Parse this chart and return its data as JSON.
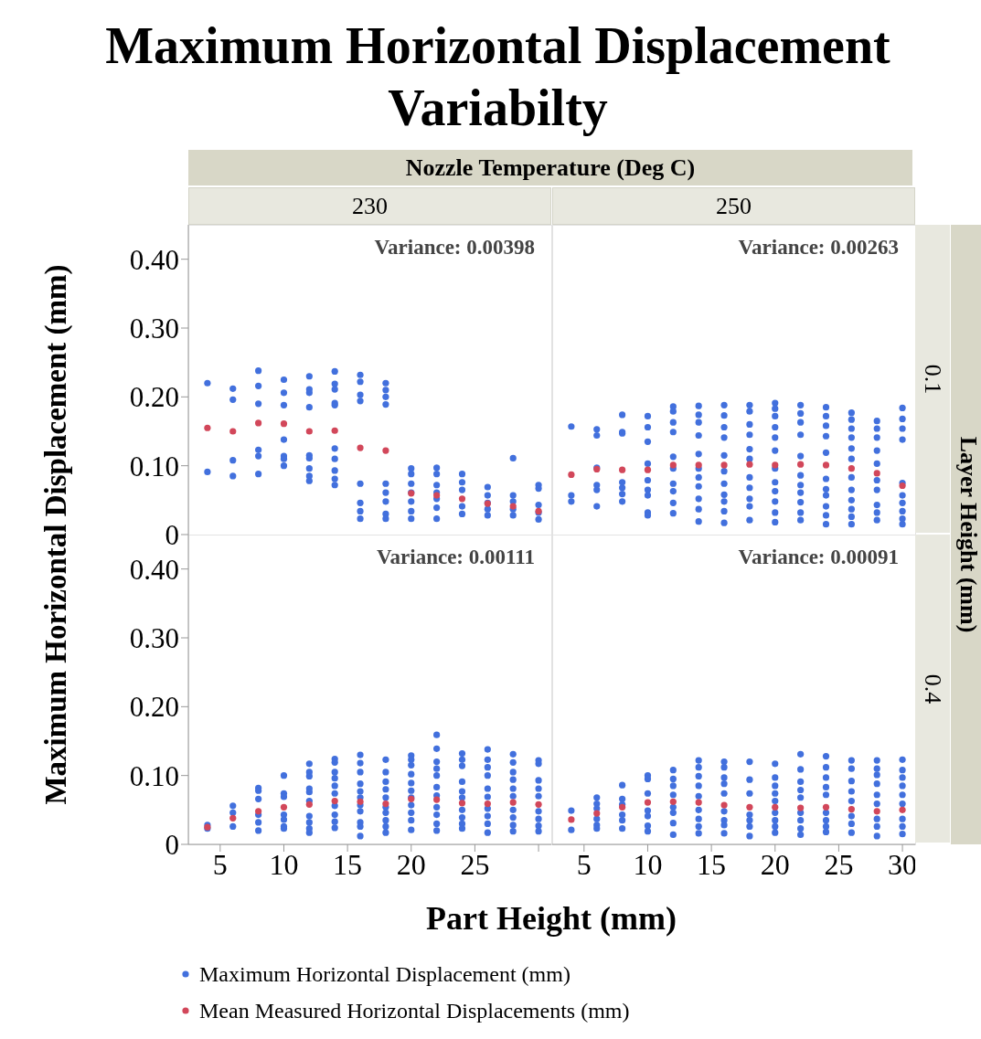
{
  "chart_data": [
    {
      "type": "scatter",
      "title": "Maximum Horizontal Displacement Variabilty",
      "ylabel": "Maximum Horizontal Displacement (mm)",
      "subtitle": "230",
      "annotations": [
        "Variance: 0.00398",
        "Nozzle Temperature (Deg C)"
      ],
      "marker": "circle",
      "tick_labels": "y",
      "xlim": [
        2.5,
        31
      ],
      "ylim": [
        0,
        0.45
      ],
      "yticks": [
        0,
        {
          "value": 0.1,
          "label": "0.10"
        },
        {
          "value": 0.2,
          "label": "0.20"
        },
        {
          "value": 0.3,
          "label": "0.30"
        },
        {
          "value": 0.4,
          "label": "0.40"
        }
      ],
      "series": [
        {
          "color": "#4270dd",
          "x": [
            4,
            4,
            6,
            6,
            6,
            6,
            8,
            8,
            8,
            8,
            8,
            8,
            10,
            10,
            10,
            10,
            10,
            10,
            10,
            12,
            12,
            12,
            12,
            12,
            12,
            12,
            12,
            12,
            14,
            14,
            14,
            14,
            14,
            14,
            14,
            14,
            14,
            14,
            16,
            16,
            16,
            16,
            16,
            16,
            16,
            16,
            18,
            18,
            18,
            18,
            18,
            18,
            18,
            18,
            18,
            20,
            20,
            20,
            20,
            20,
            20,
            20,
            22,
            22,
            22,
            22,
            22,
            22,
            22,
            24,
            24,
            24,
            24,
            24,
            26,
            26,
            26,
            26,
            26,
            28,
            28,
            28,
            28,
            28,
            30,
            30,
            30,
            30,
            30
          ],
          "values": [
            0.22,
            0.091,
            0.212,
            0.196,
            0.108,
            0.085,
            0.238,
            0.216,
            0.19,
            0.123,
            0.114,
            0.088,
            0.225,
            0.206,
            0.188,
            0.138,
            0.114,
            0.11,
            0.1,
            0.23,
            0.211,
            0.206,
            0.185,
            0.115,
            0.111,
            0.096,
            0.085,
            0.078,
            0.237,
            0.219,
            0.211,
            0.191,
            0.188,
            0.125,
            0.11,
            0.093,
            0.081,
            0.072,
            0.232,
            0.222,
            0.203,
            0.194,
            0.074,
            0.046,
            0.034,
            0.023,
            0.22,
            0.21,
            0.2,
            0.189,
            0.074,
            0.061,
            0.048,
            0.03,
            0.023,
            0.096,
            0.088,
            0.074,
            0.061,
            0.048,
            0.034,
            0.023,
            0.097,
            0.088,
            0.072,
            0.061,
            0.052,
            0.039,
            0.023,
            0.088,
            0.076,
            0.065,
            0.041,
            0.03,
            0.069,
            0.057,
            0.046,
            0.037,
            0.028,
            0.111,
            0.057,
            0.048,
            0.037,
            0.028,
            0.072,
            0.067,
            0.043,
            0.032,
            0.022
          ]
        },
        {
          "color": "#d2475a",
          "x": [
            4,
            6,
            8,
            10,
            12,
            14,
            16,
            18,
            20,
            22,
            24,
            26,
            28,
            30
          ],
          "values": [
            0.155,
            0.15,
            0.162,
            0.161,
            0.15,
            0.151,
            0.126,
            0.122,
            0.06,
            0.057,
            0.052,
            0.045,
            0.041,
            0.034
          ]
        }
      ]
    },
    {
      "type": "scatter",
      "subtitle": "250",
      "annotations": [
        "Variance: 0.00263",
        "0.1",
        "Layer Height (mm)"
      ],
      "marker": "circle",
      "tick_labels": false,
      "xlim": [
        2.5,
        31
      ],
      "ylim": [
        0,
        0.45
      ],
      "series": [
        {
          "color": "#4270dd",
          "x": [
            4,
            4,
            4,
            6,
            6,
            6,
            6,
            6,
            6,
            8,
            8,
            8,
            8,
            8,
            8,
            8,
            10,
            10,
            10,
            10,
            10,
            10,
            10,
            10,
            10,
            12,
            12,
            12,
            12,
            12,
            12,
            12,
            12,
            12,
            12,
            14,
            14,
            14,
            14,
            14,
            14,
            14,
            14,
            14,
            14,
            14,
            16,
            16,
            16,
            16,
            16,
            16,
            16,
            16,
            16,
            16,
            16,
            18,
            18,
            18,
            18,
            18,
            18,
            18,
            18,
            18,
            18,
            18,
            20,
            20,
            20,
            20,
            20,
            20,
            20,
            20,
            20,
            20,
            20,
            20,
            22,
            22,
            22,
            22,
            22,
            22,
            22,
            22,
            22,
            22,
            22,
            24,
            24,
            24,
            24,
            24,
            24,
            24,
            24,
            24,
            24,
            24,
            26,
            26,
            26,
            26,
            26,
            26,
            26,
            26,
            26,
            26,
            26,
            26,
            28,
            28,
            28,
            28,
            28,
            28,
            28,
            28,
            28,
            28,
            30,
            30,
            30,
            30,
            30,
            30,
            30,
            30,
            30,
            30
          ],
          "values": [
            0.157,
            0.057,
            0.048,
            0.153,
            0.144,
            0.097,
            0.072,
            0.065,
            0.041,
            0.174,
            0.149,
            0.147,
            0.076,
            0.068,
            0.059,
            0.048,
            0.172,
            0.156,
            0.135,
            0.103,
            0.079,
            0.065,
            0.057,
            0.032,
            0.028,
            0.186,
            0.179,
            0.163,
            0.149,
            0.113,
            0.096,
            0.074,
            0.063,
            0.046,
            0.031,
            0.187,
            0.174,
            0.163,
            0.144,
            0.117,
            0.096,
            0.083,
            0.07,
            0.052,
            0.037,
            0.019,
            0.188,
            0.173,
            0.156,
            0.141,
            0.115,
            0.092,
            0.074,
            0.058,
            0.048,
            0.034,
            0.017,
            0.188,
            0.179,
            0.16,
            0.145,
            0.124,
            0.11,
            0.083,
            0.068,
            0.052,
            0.041,
            0.021,
            0.191,
            0.183,
            0.172,
            0.156,
            0.141,
            0.122,
            0.096,
            0.076,
            0.063,
            0.048,
            0.032,
            0.018,
            0.188,
            0.176,
            0.163,
            0.145,
            0.114,
            0.086,
            0.072,
            0.061,
            0.047,
            0.032,
            0.021,
            0.185,
            0.172,
            0.158,
            0.143,
            0.119,
            0.081,
            0.066,
            0.057,
            0.041,
            0.028,
            0.015,
            0.177,
            0.167,
            0.154,
            0.141,
            0.125,
            0.11,
            0.083,
            0.065,
            0.05,
            0.037,
            0.026,
            0.015,
            0.165,
            0.154,
            0.141,
            0.122,
            0.103,
            0.079,
            0.065,
            0.043,
            0.032,
            0.021,
            0.184,
            0.168,
            0.154,
            0.138,
            0.075,
            0.057,
            0.046,
            0.034,
            0.023,
            0.015
          ]
        },
        {
          "color": "#d2475a",
          "x": [
            4,
            6,
            8,
            10,
            12,
            14,
            16,
            18,
            20,
            22,
            24,
            26,
            28,
            30
          ],
          "values": [
            0.087,
            0.095,
            0.094,
            0.094,
            0.101,
            0.101,
            0.101,
            0.102,
            0.101,
            0.102,
            0.101,
            0.096,
            0.089,
            0.071
          ]
        }
      ]
    },
    {
      "type": "scatter",
      "xlabel": "Part Height (mm)",
      "annotations": [
        "Variance: 0.00111"
      ],
      "marker": "circle",
      "legend": "bottom",
      "xlim": [
        2.5,
        31
      ],
      "xticks": [
        5,
        10,
        15,
        20,
        25,
        {
          "value": 30,
          "label": null
        }
      ],
      "ylim": [
        0,
        0.45
      ],
      "yticks": [
        0,
        {
          "value": 0.1,
          "label": "0.10"
        },
        {
          "value": 0.2,
          "label": "0.20"
        },
        {
          "value": 0.3,
          "label": "0.30"
        },
        {
          "value": 0.4,
          "label": "0.40"
        }
      ],
      "series": [
        {
          "name": "Maximum Horizontal Displacement (mm)",
          "color": "#4270dd",
          "x": [
            4,
            4,
            6,
            6,
            6,
            8,
            8,
            8,
            8,
            8,
            8,
            10,
            10,
            10,
            10,
            10,
            10,
            10,
            12,
            12,
            12,
            12,
            12,
            12,
            12,
            12,
            12,
            12,
            14,
            14,
            14,
            14,
            14,
            14,
            14,
            14,
            14,
            14,
            16,
            16,
            16,
            16,
            16,
            16,
            16,
            16,
            16,
            16,
            16,
            18,
            18,
            18,
            18,
            18,
            18,
            18,
            18,
            18,
            18,
            20,
            20,
            20,
            20,
            20,
            20,
            20,
            20,
            20,
            20,
            20,
            22,
            22,
            22,
            22,
            22,
            22,
            22,
            22,
            22,
            22,
            22,
            24,
            24,
            24,
            24,
            24,
            24,
            24,
            24,
            24,
            24,
            26,
            26,
            26,
            26,
            26,
            26,
            26,
            26,
            26,
            26,
            28,
            28,
            28,
            28,
            28,
            28,
            28,
            28,
            28,
            28,
            30,
            30,
            30,
            30,
            30,
            30,
            30,
            30,
            30
          ],
          "values": [
            0.028,
            0.023,
            0.056,
            0.046,
            0.026,
            0.082,
            0.078,
            0.066,
            0.043,
            0.032,
            0.02,
            0.1,
            0.074,
            0.069,
            0.043,
            0.036,
            0.026,
            0.023,
            0.117,
            0.105,
            0.099,
            0.081,
            0.076,
            0.063,
            0.041,
            0.032,
            0.023,
            0.017,
            0.124,
            0.119,
            0.105,
            0.096,
            0.085,
            0.074,
            0.056,
            0.043,
            0.033,
            0.024,
            0.13,
            0.118,
            0.105,
            0.088,
            0.077,
            0.068,
            0.057,
            0.048,
            0.032,
            0.026,
            0.012,
            0.123,
            0.105,
            0.091,
            0.08,
            0.068,
            0.054,
            0.046,
            0.035,
            0.026,
            0.017,
            0.129,
            0.123,
            0.115,
            0.102,
            0.089,
            0.078,
            0.068,
            0.057,
            0.046,
            0.035,
            0.021,
            0.159,
            0.139,
            0.12,
            0.11,
            0.1,
            0.083,
            0.071,
            0.054,
            0.043,
            0.03,
            0.02,
            0.132,
            0.123,
            0.114,
            0.091,
            0.077,
            0.068,
            0.05,
            0.039,
            0.03,
            0.023,
            0.138,
            0.123,
            0.112,
            0.1,
            0.081,
            0.069,
            0.052,
            0.041,
            0.03,
            0.017,
            0.131,
            0.119,
            0.105,
            0.094,
            0.081,
            0.07,
            0.05,
            0.039,
            0.028,
            0.019,
            0.122,
            0.117,
            0.093,
            0.081,
            0.07,
            0.048,
            0.037,
            0.027,
            0.019
          ]
        },
        {
          "name": "Mean Measured Horizontal Displacements (mm)",
          "color": "#d2475a",
          "x": [
            4,
            6,
            8,
            10,
            12,
            14,
            16,
            18,
            20,
            22,
            24,
            26,
            28,
            30
          ],
          "values": [
            0.025,
            0.038,
            0.048,
            0.054,
            0.058,
            0.063,
            0.062,
            0.059,
            0.066,
            0.065,
            0.06,
            0.059,
            0.061,
            0.058
          ]
        }
      ]
    },
    {
      "type": "scatter",
      "annotations": [
        "Variance: 0.00091",
        "0.4"
      ],
      "marker": "circle",
      "tick_labels": "x",
      "xlim": [
        2.5,
        31
      ],
      "xticks": [
        5,
        10,
        15,
        20,
        25,
        30
      ],
      "ylim": [
        0,
        0.45
      ],
      "series": [
        {
          "color": "#4270dd",
          "x": [
            4,
            4,
            6,
            6,
            6,
            6,
            6,
            6,
            8,
            8,
            8,
            8,
            8,
            8,
            10,
            10,
            10,
            10,
            10,
            10,
            10,
            12,
            12,
            12,
            12,
            12,
            12,
            12,
            12,
            14,
            14,
            14,
            14,
            14,
            14,
            14,
            14,
            14,
            16,
            16,
            16,
            16,
            16,
            16,
            16,
            16,
            16,
            18,
            18,
            18,
            18,
            18,
            18,
            18,
            20,
            20,
            20,
            20,
            20,
            20,
            20,
            20,
            20,
            22,
            22,
            22,
            22,
            22,
            22,
            22,
            22,
            22,
            24,
            24,
            24,
            24,
            24,
            24,
            24,
            24,
            24,
            26,
            26,
            26,
            26,
            26,
            26,
            26,
            26,
            28,
            28,
            28,
            28,
            28,
            28,
            28,
            28,
            28,
            30,
            30,
            30,
            30,
            30,
            30,
            30,
            30,
            30
          ],
          "values": [
            0.049,
            0.021,
            0.068,
            0.059,
            0.052,
            0.037,
            0.028,
            0.023,
            0.086,
            0.066,
            0.058,
            0.043,
            0.035,
            0.023,
            0.1,
            0.095,
            0.074,
            0.049,
            0.041,
            0.027,
            0.019,
            0.108,
            0.095,
            0.085,
            0.072,
            0.054,
            0.046,
            0.031,
            0.014,
            0.122,
            0.112,
            0.099,
            0.085,
            0.07,
            0.05,
            0.037,
            0.026,
            0.016,
            0.12,
            0.112,
            0.097,
            0.088,
            0.074,
            0.048,
            0.035,
            0.028,
            0.016,
            0.12,
            0.094,
            0.074,
            0.043,
            0.035,
            0.026,
            0.012,
            0.117,
            0.097,
            0.085,
            0.074,
            0.063,
            0.046,
            0.035,
            0.026,
            0.017,
            0.131,
            0.109,
            0.091,
            0.079,
            0.068,
            0.046,
            0.035,
            0.023,
            0.014,
            0.128,
            0.112,
            0.097,
            0.083,
            0.072,
            0.046,
            0.035,
            0.026,
            0.018,
            0.122,
            0.11,
            0.092,
            0.077,
            0.063,
            0.041,
            0.03,
            0.017,
            0.122,
            0.11,
            0.101,
            0.088,
            0.072,
            0.059,
            0.037,
            0.026,
            0.012,
            0.123,
            0.108,
            0.097,
            0.085,
            0.072,
            0.059,
            0.037,
            0.026,
            0.015
          ]
        },
        {
          "color": "#d2475a",
          "x": [
            4,
            6,
            8,
            10,
            12,
            14,
            16,
            18,
            20,
            22,
            24,
            26,
            28,
            30
          ],
          "values": [
            0.036,
            0.045,
            0.054,
            0.061,
            0.062,
            0.061,
            0.057,
            0.054,
            0.054,
            0.053,
            0.054,
            0.051,
            0.048,
            0.05
          ]
        }
      ]
    }
  ]
}
